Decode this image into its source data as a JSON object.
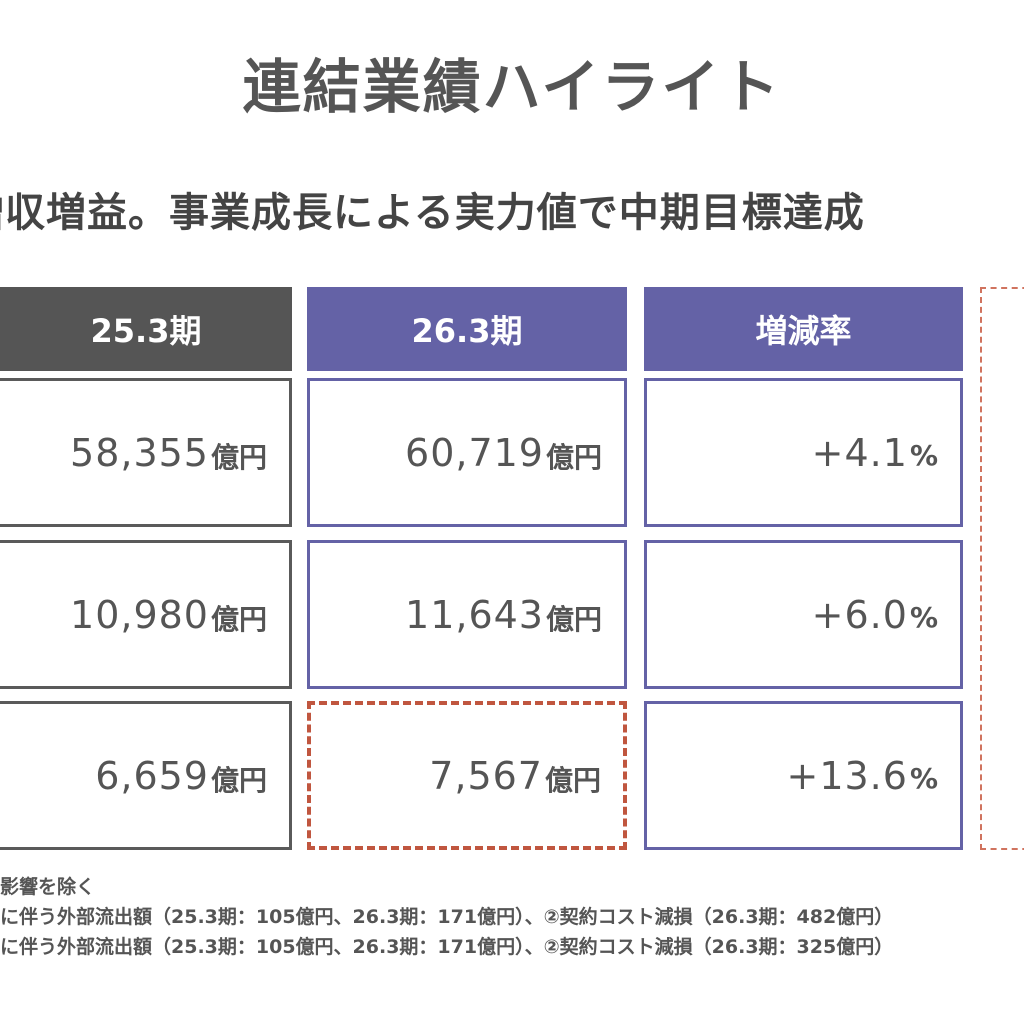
{
  "title": "連結業績ハイライト",
  "subtitle": "増収増益。事業成長による実力値で中期目標達成",
  "table": {
    "headers": [
      "25.3期",
      "26.3期",
      "増減率"
    ],
    "unit": "億円",
    "pct_unit": "%",
    "rows": [
      {
        "prev": "58,355",
        "curr": "60,719",
        "change": "+4.1"
      },
      {
        "prev": "10,980",
        "curr": "11,643",
        "change": "+6.0"
      },
      {
        "prev": "6,659",
        "curr": "7,567",
        "change": "+13.6"
      }
    ]
  },
  "notes": [
    "影響を除く",
    "に伴う外部流出額（25.3期：105億円、26.3期：171億円）、②契約コスト減損（26.3期：482億円）",
    "に伴う外部流出額（25.3期：105億円、26.3期：171億円）、②契約コスト減損（26.3期：325億円）"
  ],
  "colors": {
    "prev_header": "#555555",
    "curr_header": "#6462a6",
    "highlight_border": "#c0563f"
  }
}
